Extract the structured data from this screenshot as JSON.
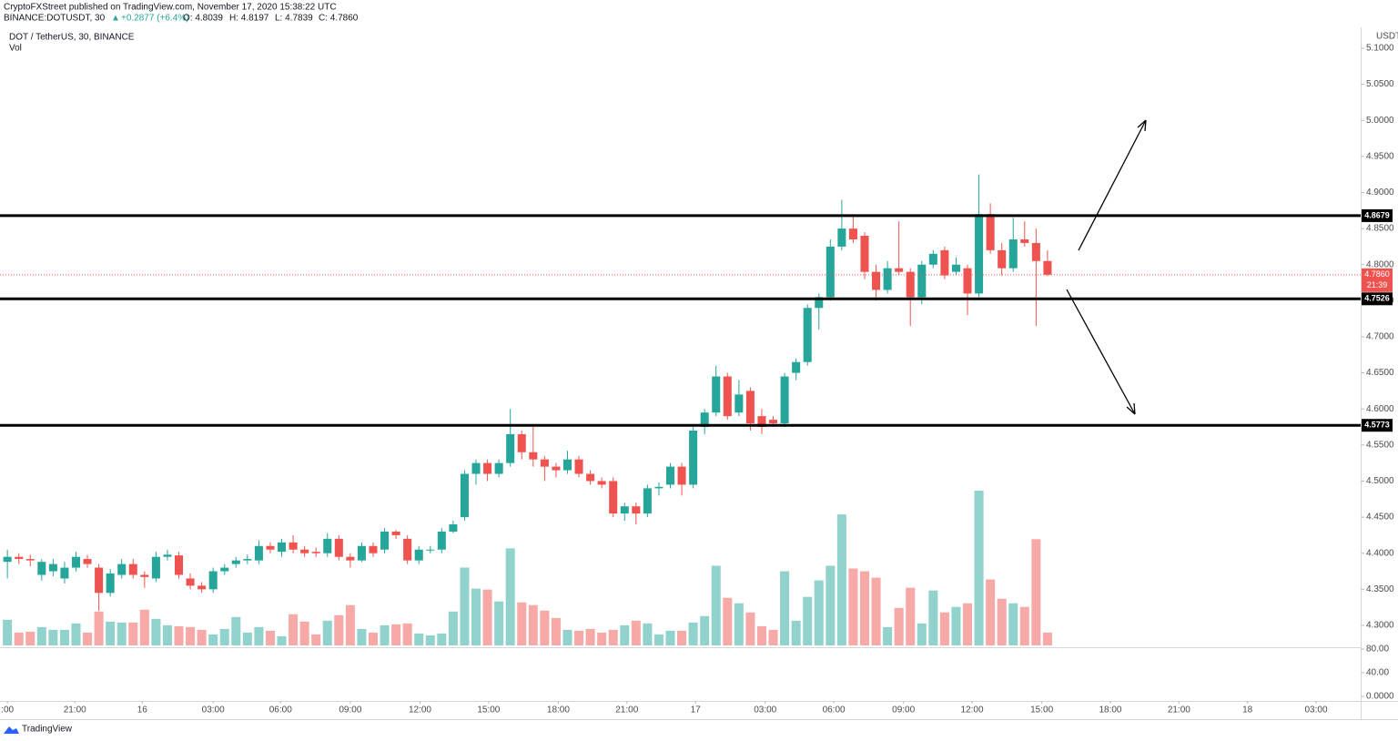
{
  "header": {
    "publisher": "CryptoFXStreet published on TradingView.com, November 17, 2020 15:38:22 UTC",
    "symbol": "BINANCE:DOTUSDT, 30",
    "change": "+0.2877 (+6.4%)",
    "ohlc": [
      "O: 4.8039",
      "H: 4.8197",
      "L: 4.7839",
      "C: 4.7860"
    ]
  },
  "footer": {
    "brand": "TradingView"
  },
  "chart_data": {
    "type": "candlestick",
    "title": "DOT / TetherUS, 30, BINANCE",
    "volume_label": "Vol",
    "currency": "USDT",
    "up_color": "#26a69a",
    "down_color": "#ef5350",
    "open": [
      4.388,
      4.395,
      4.392,
      4.37,
      4.375,
      4.365,
      4.38,
      4.392,
      4.38,
      4.345,
      4.37,
      4.385,
      4.37,
      4.365,
      4.395,
      4.397,
      4.365,
      4.355,
      4.35,
      4.375,
      4.385,
      4.39,
      4.39,
      4.41,
      4.402,
      4.415,
      4.405,
      4.402,
      4.4,
      4.42,
      4.395,
      4.39,
      4.41,
      4.405,
      4.43,
      4.42,
      4.39,
      4.405,
      4.405,
      4.43,
      4.45,
      4.51,
      4.525,
      4.51,
      4.525,
      4.565,
      4.54,
      4.53,
      4.52,
      4.515,
      4.53,
      4.51,
      4.5,
      4.5,
      4.455,
      4.465,
      4.455,
      4.49,
      4.495,
      4.52,
      4.495,
      4.575,
      4.595,
      4.645,
      4.595,
      4.625,
      4.59,
      4.585,
      4.58,
      4.65,
      4.665,
      4.74,
      4.755,
      4.825,
      4.85,
      4.84,
      4.79,
      4.765,
      4.795,
      4.79,
      4.755,
      4.8,
      4.82,
      4.79,
      4.795,
      4.76,
      4.87,
      4.82,
      4.795,
      4.835,
      4.83,
      4.805
    ],
    "high": [
      4.405,
      4.4,
      4.398,
      4.392,
      4.392,
      4.388,
      4.402,
      4.398,
      4.385,
      4.378,
      4.392,
      4.392,
      4.375,
      4.402,
      4.405,
      4.402,
      4.372,
      4.36,
      4.38,
      4.385,
      4.395,
      4.398,
      4.418,
      4.415,
      4.42,
      4.425,
      4.41,
      4.408,
      4.428,
      4.425,
      4.4,
      4.415,
      4.415,
      4.435,
      4.432,
      4.425,
      4.41,
      4.41,
      4.435,
      4.445,
      4.515,
      4.53,
      4.53,
      4.53,
      4.6,
      4.57,
      4.575,
      4.535,
      4.525,
      4.542,
      4.535,
      4.515,
      4.505,
      4.505,
      4.47,
      4.47,
      4.495,
      4.498,
      4.525,
      4.525,
      4.575,
      4.6,
      4.66,
      4.65,
      4.64,
      4.63,
      4.6,
      4.59,
      4.65,
      4.67,
      4.745,
      4.76,
      4.835,
      4.89,
      4.87,
      4.845,
      4.8,
      4.805,
      4.86,
      4.795,
      4.805,
      4.82,
      4.825,
      4.81,
      4.8,
      4.925,
      4.885,
      4.83,
      4.865,
      4.86,
      4.85,
      4.82
    ],
    "low": [
      4.365,
      4.385,
      4.382,
      4.362,
      4.368,
      4.358,
      4.375,
      4.38,
      4.32,
      4.34,
      4.365,
      4.365,
      4.352,
      4.36,
      4.39,
      4.365,
      4.35,
      4.345,
      4.345,
      4.37,
      4.38,
      4.385,
      4.385,
      4.4,
      4.395,
      4.4,
      4.395,
      4.395,
      4.395,
      4.39,
      4.38,
      4.388,
      4.395,
      4.4,
      4.42,
      4.385,
      4.385,
      4.4,
      4.4,
      4.428,
      4.445,
      4.495,
      4.5,
      4.505,
      4.52,
      4.53,
      4.52,
      4.5,
      4.505,
      4.51,
      4.505,
      4.495,
      4.49,
      4.45,
      4.445,
      4.44,
      4.45,
      4.48,
      4.49,
      4.48,
      4.49,
      4.565,
      4.59,
      4.585,
      4.59,
      4.57,
      4.565,
      4.575,
      4.575,
      4.64,
      4.66,
      4.71,
      4.75,
      4.82,
      4.83,
      4.78,
      4.75,
      4.76,
      4.785,
      4.715,
      4.745,
      4.795,
      4.78,
      4.785,
      4.73,
      4.755,
      4.815,
      4.785,
      4.79,
      4.825,
      4.715,
      4.784
    ],
    "close": [
      4.395,
      4.392,
      4.39,
      4.388,
      4.385,
      4.38,
      4.395,
      4.385,
      4.345,
      4.372,
      4.385,
      4.37,
      4.367,
      4.395,
      4.398,
      4.37,
      4.355,
      4.35,
      4.375,
      4.38,
      4.39,
      4.392,
      4.41,
      4.405,
      4.415,
      4.405,
      4.4,
      4.4,
      4.42,
      4.395,
      4.39,
      4.41,
      4.4,
      4.43,
      4.425,
      4.39,
      4.405,
      4.405,
      4.43,
      4.44,
      4.51,
      4.525,
      4.51,
      4.525,
      4.565,
      4.54,
      4.53,
      4.52,
      4.515,
      4.53,
      4.51,
      4.5,
      4.495,
      4.455,
      4.465,
      4.455,
      4.49,
      4.492,
      4.52,
      4.495,
      4.57,
      4.595,
      4.645,
      4.59,
      4.62,
      4.58,
      4.575,
      4.58,
      4.645,
      4.665,
      4.74,
      4.755,
      4.825,
      4.85,
      4.835,
      4.79,
      4.765,
      4.795,
      4.79,
      4.755,
      4.8,
      4.815,
      4.785,
      4.8,
      4.76,
      4.87,
      4.82,
      4.795,
      4.835,
      4.83,
      4.805,
      4.786
    ],
    "volume": [
      28,
      14,
      15,
      20,
      17,
      17,
      24,
      14,
      37,
      26,
      25,
      25,
      39,
      29,
      22,
      21,
      20,
      17,
      12,
      18,
      31,
      14,
      20,
      16,
      10,
      34,
      26,
      12,
      27,
      33,
      44,
      18,
      14,
      22,
      23,
      24,
      13,
      11,
      13,
      37,
      85,
      62,
      61,
      48,
      106,
      47,
      44,
      38,
      30,
      17,
      16,
      18,
      14,
      17,
      22,
      27,
      24,
      12,
      16,
      16,
      25,
      32,
      87,
      52,
      46,
      36,
      21,
      17,
      81,
      27,
      53,
      71,
      87,
      143,
      84,
      81,
      74,
      20,
      41,
      63,
      24,
      60,
      36,
      42,
      46,
      169,
      72,
      51,
      46,
      42,
      116,
      14
    ],
    "xlim": [
      -0.25,
      118.4
    ],
    "xticks": [
      {
        "value": 0,
        "label": ":00"
      },
      {
        "value": 5.9,
        "label": "21:00"
      },
      {
        "value": 11.8,
        "label": "16"
      },
      {
        "value": 18.0,
        "label": "03:00"
      },
      {
        "value": 23.9,
        "label": "06:00"
      },
      {
        "value": 30.0,
        "label": "09:00"
      },
      {
        "value": 36.1,
        "label": "12:00"
      },
      {
        "value": 42.1,
        "label": "15:00"
      },
      {
        "value": 48.2,
        "label": "18:00"
      },
      {
        "value": 54.2,
        "label": "21:00"
      },
      {
        "value": 60.2,
        "label": "17"
      },
      {
        "value": 66.3,
        "label": "03:00"
      },
      {
        "value": 72.3,
        "label": "06:00"
      },
      {
        "value": 78.4,
        "label": "09:00"
      },
      {
        "value": 84.4,
        "label": "12:00"
      },
      {
        "value": 90.5,
        "label": "15:00"
      },
      {
        "value": 96.5,
        "label": "18:00"
      },
      {
        "value": 102.5,
        "label": "21:00"
      },
      {
        "value": 108.5,
        "label": "18"
      },
      {
        "value": 114.5,
        "label": "03:00"
      }
    ],
    "ylim": [
      4.2722,
      5.1252
    ],
    "yticks": [
      {
        "value": 4.3,
        "label": "4.3000"
      },
      {
        "value": 4.35,
        "label": "4.3500"
      },
      {
        "value": 4.4,
        "label": "4.4000"
      },
      {
        "value": 4.45,
        "label": "4.4500"
      },
      {
        "value": 4.5,
        "label": "4.5000"
      },
      {
        "value": 4.55,
        "label": "4.5500"
      },
      {
        "value": 4.6,
        "label": "4.6000"
      },
      {
        "value": 4.65,
        "label": "4.6500"
      },
      {
        "value": 4.7,
        "label": "4.7000"
      },
      {
        "value": 4.75,
        "label": "4.7500"
      },
      {
        "value": 4.8,
        "label": "4.8000"
      },
      {
        "value": 4.85,
        "label": "4.8500"
      },
      {
        "value": 4.9,
        "label": "4.9000"
      },
      {
        "value": 4.95,
        "label": "4.9500"
      },
      {
        "value": 5.0,
        "label": "5.0000"
      },
      {
        "value": 5.05,
        "label": "5.0500"
      },
      {
        "value": 5.1,
        "label": "5.1000"
      }
    ],
    "levels": [
      4.8679,
      4.7526,
      4.5773
    ],
    "last_price": {
      "value": 4.786,
      "label": "4.7860"
    },
    "countdown": "21:39",
    "y2lim": [
      -7.7,
      81.5
    ],
    "y2ticks": [
      {
        "value": 80,
        "label": "80.00"
      },
      {
        "value": 40,
        "label": "40.00"
      },
      {
        "value": 0,
        "label": "0.0000"
      }
    ]
  }
}
